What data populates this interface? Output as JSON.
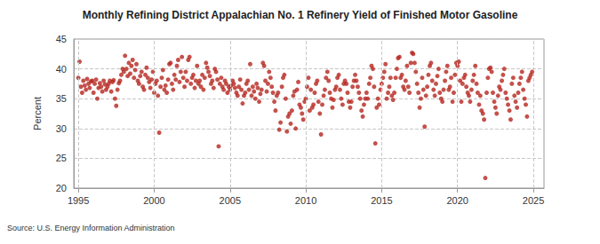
{
  "chart_data": {
    "type": "scatter",
    "title": "Monthly Refining District Appalachian No. 1 Refinery Yield of Finished Motor Gasoline",
    "ylabel": "Percent",
    "source": "Source: U.S. Energy Information Administration",
    "color": "#b5261e",
    "marker": "circle",
    "grid": true,
    "xlim": [
      1994.7,
      2025.7
    ],
    "xticks": [
      1995,
      2000,
      2005,
      2010,
      2015,
      2020,
      2025
    ],
    "ylim": [
      20,
      45
    ],
    "yticks": [
      20,
      25,
      30,
      35,
      40,
      45
    ],
    "x": [
      1995.0,
      1995.08,
      1995.17,
      1995.25,
      1995.33,
      1995.42,
      1995.5,
      1995.58,
      1995.67,
      1995.75,
      1995.83,
      1995.92,
      1996.0,
      1996.08,
      1996.17,
      1996.25,
      1996.33,
      1996.42,
      1996.5,
      1996.58,
      1996.67,
      1996.75,
      1996.83,
      1996.92,
      1997.0,
      1997.08,
      1997.17,
      1997.25,
      1997.33,
      1997.42,
      1997.5,
      1997.58,
      1997.67,
      1997.75,
      1997.83,
      1997.92,
      1998.0,
      1998.08,
      1998.17,
      1998.25,
      1998.33,
      1998.42,
      1998.5,
      1998.58,
      1998.67,
      1998.75,
      1998.83,
      1998.92,
      1999.0,
      1999.08,
      1999.17,
      1999.25,
      1999.33,
      1999.42,
      1999.5,
      1999.58,
      1999.67,
      1999.75,
      1999.83,
      1999.92,
      2000.0,
      2000.08,
      2000.17,
      2000.25,
      2000.33,
      2000.42,
      2000.5,
      2000.58,
      2000.67,
      2000.75,
      2000.83,
      2000.92,
      2001.0,
      2001.08,
      2001.17,
      2001.25,
      2001.33,
      2001.42,
      2001.5,
      2001.58,
      2001.67,
      2001.75,
      2001.83,
      2001.92,
      2002.0,
      2002.08,
      2002.17,
      2002.25,
      2002.33,
      2002.42,
      2002.5,
      2002.58,
      2002.67,
      2002.75,
      2002.83,
      2002.92,
      2003.0,
      2003.08,
      2003.17,
      2003.25,
      2003.33,
      2003.42,
      2003.5,
      2003.58,
      2003.67,
      2003.75,
      2003.83,
      2003.92,
      2004.0,
      2004.08,
      2004.17,
      2004.25,
      2004.33,
      2004.42,
      2004.5,
      2004.58,
      2004.67,
      2004.75,
      2004.83,
      2004.92,
      2005.0,
      2005.08,
      2005.17,
      2005.25,
      2005.33,
      2005.42,
      2005.5,
      2005.58,
      2005.67,
      2005.75,
      2005.83,
      2005.92,
      2006.0,
      2006.08,
      2006.17,
      2006.25,
      2006.33,
      2006.42,
      2006.5,
      2006.58,
      2006.67,
      2006.75,
      2006.83,
      2006.92,
      2007.0,
      2007.08,
      2007.17,
      2007.25,
      2007.33,
      2007.42,
      2007.5,
      2007.58,
      2007.67,
      2007.75,
      2007.83,
      2007.92,
      2008.0,
      2008.08,
      2008.17,
      2008.25,
      2008.33,
      2008.42,
      2008.5,
      2008.58,
      2008.67,
      2008.75,
      2008.83,
      2008.92,
      2009.0,
      2009.08,
      2009.17,
      2009.25,
      2009.33,
      2009.42,
      2009.5,
      2009.58,
      2009.67,
      2009.75,
      2009.83,
      2009.92,
      2010.0,
      2010.08,
      2010.17,
      2010.25,
      2010.33,
      2010.42,
      2010.5,
      2010.58,
      2010.67,
      2010.75,
      2010.83,
      2010.92,
      2011.0,
      2011.08,
      2011.17,
      2011.25,
      2011.33,
      2011.42,
      2011.5,
      2011.58,
      2011.67,
      2011.75,
      2011.83,
      2011.92,
      2012.0,
      2012.08,
      2012.17,
      2012.25,
      2012.33,
      2012.42,
      2012.5,
      2012.58,
      2012.67,
      2012.75,
      2012.83,
      2012.92,
      2013.0,
      2013.08,
      2013.17,
      2013.25,
      2013.33,
      2013.42,
      2013.5,
      2013.58,
      2013.67,
      2013.75,
      2013.83,
      2013.92,
      2014.0,
      2014.08,
      2014.17,
      2014.25,
      2014.33,
      2014.42,
      2014.5,
      2014.58,
      2014.67,
      2014.75,
      2014.83,
      2014.92,
      2015.0,
      2015.08,
      2015.17,
      2015.25,
      2015.33,
      2015.42,
      2015.5,
      2015.58,
      2015.67,
      2015.75,
      2015.83,
      2015.92,
      2016.0,
      2016.08,
      2016.17,
      2016.25,
      2016.33,
      2016.42,
      2016.5,
      2016.58,
      2016.67,
      2016.75,
      2016.83,
      2016.92,
      2017.0,
      2017.08,
      2017.17,
      2017.25,
      2017.33,
      2017.42,
      2017.5,
      2017.58,
      2017.67,
      2017.75,
      2017.83,
      2017.92,
      2018.0,
      2018.08,
      2018.17,
      2018.25,
      2018.33,
      2018.42,
      2018.5,
      2018.58,
      2018.67,
      2018.75,
      2018.83,
      2018.92,
      2019.0,
      2019.08,
      2019.17,
      2019.25,
      2019.33,
      2019.42,
      2019.5,
      2019.58,
      2019.67,
      2019.75,
      2019.83,
      2019.92,
      2020.0,
      2020.08,
      2020.17,
      2020.25,
      2020.33,
      2020.42,
      2020.5,
      2020.58,
      2020.67,
      2020.75,
      2020.83,
      2020.92,
      2021.0,
      2021.08,
      2021.17,
      2021.25,
      2021.33,
      2021.42,
      2021.5,
      2021.58,
      2021.67,
      2021.75,
      2021.83,
      2021.92,
      2022.0,
      2022.08,
      2022.17,
      2022.25,
      2022.33,
      2022.42,
      2022.5,
      2022.58,
      2022.67,
      2022.75,
      2022.83,
      2022.92,
      2023.0,
      2023.08,
      2023.17,
      2023.25,
      2023.33,
      2023.42,
      2023.5,
      2023.58,
      2023.67,
      2023.75,
      2023.83,
      2023.92,
      2024.0,
      2024.08,
      2024.17,
      2024.25,
      2024.33,
      2024.42,
      2024.5,
      2024.58,
      2024.67,
      2024.75,
      2024.83,
      2024.92
    ],
    "values": [
      38.5,
      41.2,
      37.0,
      36.0,
      38.0,
      37.2,
      36.5,
      38.3,
      37.5,
      36.8,
      37.9,
      38.0,
      36.0,
      37.5,
      38.2,
      35.0,
      36.8,
      37.6,
      37.0,
      36.2,
      38.0,
      37.4,
      36.5,
      37.0,
      37.5,
      38.0,
      36.2,
      37.8,
      38.1,
      35.0,
      33.8,
      36.5,
      37.6,
      38.0,
      39.0,
      40.0,
      39.5,
      42.2,
      40.0,
      38.8,
      41.0,
      39.2,
      40.5,
      41.5,
      38.5,
      39.8,
      40.8,
      38.0,
      37.5,
      38.8,
      39.5,
      37.0,
      36.5,
      39.0,
      40.2,
      38.5,
      37.8,
      36.8,
      38.2,
      39.5,
      36.0,
      37.5,
      38.0,
      35.5,
      29.3,
      37.0,
      38.5,
      39.8,
      36.5,
      37.2,
      36.0,
      38.2,
      40.8,
      41.0,
      37.5,
      36.5,
      39.0,
      38.2,
      40.5,
      41.5,
      37.8,
      39.5,
      42.0,
      38.5,
      37.0,
      39.5,
      38.0,
      41.5,
      42.0,
      37.5,
      38.5,
      39.0,
      36.8,
      38.0,
      40.5,
      37.5,
      38.0,
      37.0,
      39.0,
      36.5,
      38.5,
      41.0,
      40.2,
      39.5,
      38.8,
      37.5,
      38.0,
      36.8,
      40.0,
      39.5,
      38.2,
      27.0,
      37.5,
      38.5,
      37.0,
      36.5,
      38.0,
      37.5,
      36.0,
      37.0,
      36.5,
      37.2,
      38.0,
      37.5,
      36.8,
      36.0,
      35.5,
      37.0,
      38.2,
      36.5,
      34.2,
      35.5,
      36.0,
      37.5,
      38.0,
      36.5,
      40.8,
      35.5,
      37.0,
      36.2,
      35.0,
      37.5,
      36.8,
      34.5,
      35.8,
      36.5,
      41.0,
      40.5,
      38.0,
      36.2,
      37.5,
      39.5,
      38.5,
      37.0,
      36.0,
      34.5,
      33.0,
      35.5,
      36.0,
      29.8,
      31.0,
      37.0,
      38.5,
      39.0,
      35.0,
      29.5,
      32.0,
      32.5,
      30.8,
      33.0,
      35.5,
      36.2,
      30.0,
      36.5,
      37.8,
      34.0,
      33.5,
      32.5,
      31.5,
      34.5,
      35.0,
      37.0,
      38.5,
      33.0,
      36.5,
      33.5,
      34.0,
      36.0,
      37.5,
      38.0,
      34.5,
      32.5,
      29.0,
      34.0,
      35.5,
      36.5,
      38.5,
      39.5,
      38.0,
      36.0,
      35.0,
      33.5,
      34.8,
      36.5,
      37.0,
      38.5,
      39.0,
      36.5,
      35.0,
      34.0,
      37.5,
      38.0,
      37.5,
      36.0,
      34.5,
      33.5,
      34.5,
      37.0,
      38.0,
      39.0,
      38.0,
      37.0,
      36.0,
      35.0,
      33.0,
      32.0,
      34.0,
      35.0,
      36.0,
      35.0,
      37.5,
      38.5,
      40.5,
      40.0,
      37.0,
      27.5,
      33.5,
      35.0,
      34.0,
      36.5,
      37.5,
      38.5,
      39.5,
      40.8,
      35.0,
      36.0,
      37.0,
      38.5,
      35.5,
      34.8,
      36.0,
      38.5,
      40.0,
      41.8,
      42.0,
      38.5,
      39.0,
      37.0,
      36.5,
      38.0,
      40.5,
      37.0,
      36.0,
      41.0,
      42.7,
      42.5,
      41.0,
      39.5,
      37.5,
      36.0,
      33.5,
      35.0,
      38.5,
      36.5,
      30.3,
      35.5,
      37.0,
      39.0,
      40.5,
      41.0,
      38.0,
      36.5,
      35.5,
      37.5,
      38.8,
      40.0,
      36.0,
      35.0,
      34.5,
      36.5,
      38.0,
      39.5,
      40.5,
      36.5,
      37.0,
      38.5,
      34.5,
      36.0,
      39.0,
      41.0,
      40.5,
      41.2,
      38.0,
      34.5,
      37.5,
      38.5,
      39.0,
      37.0,
      36.0,
      35.5,
      34.5,
      36.5,
      38.0,
      39.0,
      40.5,
      37.5,
      36.0,
      34.0,
      35.5,
      33.0,
      32.5,
      31.5,
      21.7,
      36.0,
      38.5,
      40.0,
      40.2,
      39.5,
      36.0,
      34.5,
      33.5,
      32.5,
      35.5,
      37.0,
      36.5,
      38.0,
      39.0,
      40.0,
      36.0,
      35.0,
      34.0,
      33.0,
      31.5,
      37.5,
      38.5,
      35.5,
      34.5,
      33.5,
      36.0,
      37.5,
      38.5,
      39.5,
      36.5,
      35.0,
      34.0,
      32.0,
      38.0,
      38.5,
      39.0,
      39.5
    ]
  }
}
